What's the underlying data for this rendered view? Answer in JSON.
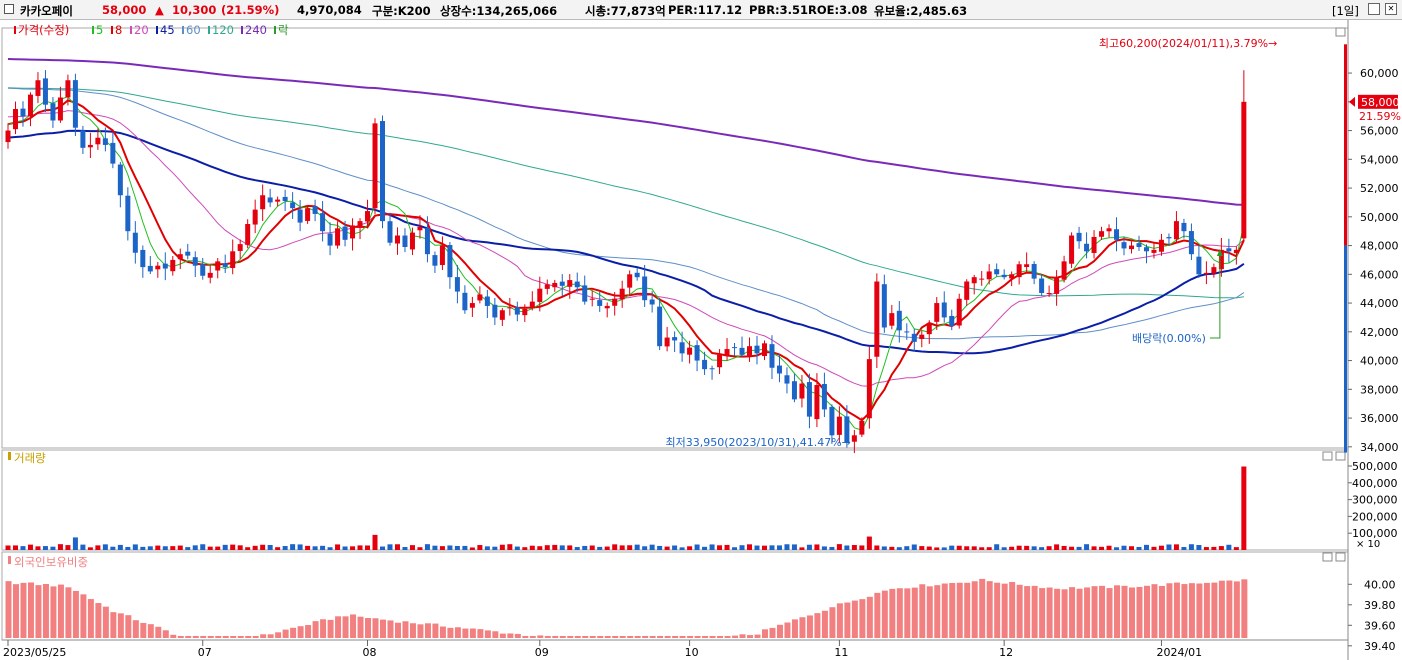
{
  "header": {
    "name": "카카오페이",
    "price": "58,000",
    "arrow": "▲",
    "change": "10,300",
    "change_pct": "(21.59%)",
    "volume": "4,970,084",
    "market": "구분:K200",
    "shares": "상장수:134,265,066",
    "mktcap": "시총:77,873억",
    "per": "PER:117.12",
    "pbr": "PBR:3.51",
    "roe": "ROE:3.08",
    "float": "유보율:2,485.63",
    "period": "[1일]"
  },
  "colors": {
    "up": "#e4000f",
    "down": "#1c64c8",
    "ma5": "#1fbf1f",
    "ma8": "#e00000",
    "ma20": "#d04ab8",
    "ma45": "#0a1ea8",
    "ma60": "#5f8fc8",
    "ma120": "#30a890",
    "ma240": "#7a2ab8",
    "foreign": "#f28080"
  },
  "legend": [
    {
      "label": "가격(수정)",
      "color": "#e4000f"
    },
    {
      "label": "5",
      "color": "#1fbf1f"
    },
    {
      "label": "8",
      "color": "#e00000"
    },
    {
      "label": "20",
      "color": "#d04ab8"
    },
    {
      "label": "45",
      "color": "#0a1ea8"
    },
    {
      "label": "60",
      "color": "#5f8fc8"
    },
    {
      "label": "120",
      "color": "#30a890"
    },
    {
      "label": "240",
      "color": "#7a2ab8"
    },
    {
      "label": "락",
      "color": "#2a9a2a"
    }
  ],
  "chart_data": [
    {
      "type": "candlestick",
      "title": "가격(수정)",
      "ylim": [
        33500,
        62300
      ],
      "y_ticks": [
        "34,000",
        "36,000",
        "38,000",
        "40,000",
        "42,000",
        "44,000",
        "46,000",
        "48,000",
        "50,000",
        "52,000",
        "54,000",
        "56,000",
        "58,000",
        "60,000"
      ],
      "x_ticks": [
        {
          "index": 0,
          "label": "2023/05/25"
        },
        {
          "index": 26,
          "label": "07"
        },
        {
          "index": 48,
          "label": "08"
        },
        {
          "index": 71,
          "label": "09"
        },
        {
          "index": 91,
          "label": "10"
        },
        {
          "index": 111,
          "label": "11"
        },
        {
          "index": 133,
          "label": "12"
        },
        {
          "index": 154,
          "label": "2024/01"
        }
      ],
      "closes": [
        56000,
        57500,
        57000,
        58500,
        59500,
        57800,
        56700,
        58300,
        59500,
        56200,
        54800,
        55000,
        55500,
        55000,
        53700,
        51500,
        49000,
        47500,
        46500,
        46200,
        46600,
        46400,
        47000,
        47400,
        47300,
        46600,
        45900,
        46100,
        46900,
        46500,
        47600,
        48100,
        49500,
        50500,
        51500,
        51000,
        51200,
        51100,
        50600,
        49600,
        50600,
        50200,
        49000,
        48000,
        49200,
        48400,
        49400,
        49700,
        50400,
        56500,
        49700,
        48200,
        48700,
        47900,
        48900,
        49300,
        47400,
        46600,
        48000,
        45800,
        44800,
        43500,
        44000,
        44600,
        43800,
        43000,
        43500,
        43700,
        43200,
        43600,
        44100,
        45000,
        45300,
        45400,
        45200,
        45600,
        45100,
        44100,
        44300,
        43800,
        43800,
        44300,
        45000,
        46000,
        45800,
        44200,
        43900,
        41000,
        41600,
        41400,
        40500,
        40900,
        40000,
        39400,
        39400,
        40400,
        40800,
        40900,
        40400,
        41000,
        40500,
        41200,
        39500,
        39100,
        38400,
        37300,
        38400,
        36100,
        38300,
        36600,
        34800,
        36100,
        34300,
        34800,
        35800,
        40100,
        45500,
        42300,
        43300,
        42100,
        42000,
        41300,
        41800,
        42600,
        44000,
        43000,
        42400,
        44300,
        45500,
        45800,
        45700,
        46200,
        46000,
        45800,
        46000,
        46700,
        46700,
        45700,
        44700,
        44700,
        45800,
        46900,
        48700,
        48300,
        47600,
        48600,
        49000,
        49200,
        48400,
        47800,
        48000,
        47900,
        47600,
        47700,
        48400,
        48500,
        49700,
        49000,
        47400,
        46000,
        46100,
        46500,
        47700,
        47600,
        47700,
        58000
      ],
      "current_label": "58,000",
      "current_pct": "21.59%",
      "high_annotation": {
        "index": 170,
        "text": "최고60,200(2024/01/11),3.79%→"
      },
      "low_annotation": {
        "index": 112,
        "text": "최저33,950(2023/10/31),41.47%→"
      },
      "dividend_annotation": {
        "index": 161,
        "text": "배당락(0.00%)"
      }
    },
    {
      "type": "bar",
      "title": "거래량",
      "y_ticks": [
        "500,000",
        "400,000",
        "300,000",
        "200,000",
        "100,000"
      ],
      "unit": "× 10",
      "last_value": 497008
    },
    {
      "type": "bar",
      "title": "외국인보유비중",
      "y_ticks": [
        "40.00",
        "39.80",
        "39.60",
        "39.40"
      ],
      "ylim": [
        39.32,
        40.12
      ]
    }
  ]
}
